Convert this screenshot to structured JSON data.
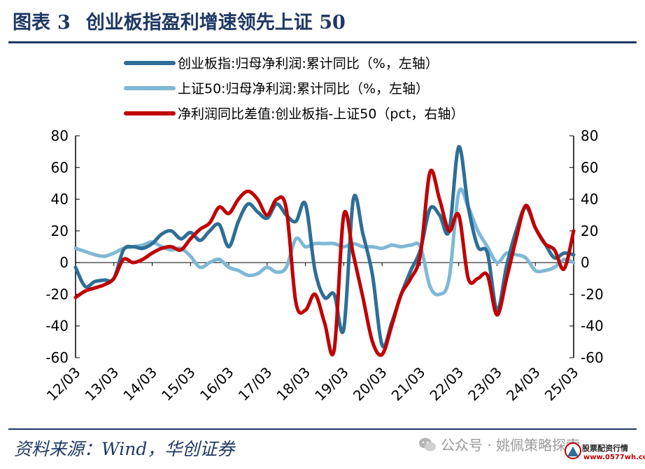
{
  "title": {
    "prefix": "图表",
    "number": "3",
    "text": "创业板指盈利增速领先上证 50"
  },
  "source": "资料来源：Wind，华创证券",
  "watermark": {
    "text": "公众号 · 姚佩策略探索",
    "icon": "wechat-icon"
  },
  "stamp": {
    "line1": "股票配资行情",
    "line2": "www.0577wh.com"
  },
  "chart_data": {
    "type": "line",
    "x_labels": [
      "12/03",
      "13/03",
      "14/03",
      "15/03",
      "16/03",
      "17/03",
      "18/03",
      "19/03",
      "20/03",
      "21/03",
      "22/03",
      "23/03",
      "24/03",
      "25/03"
    ],
    "x_range": [
      "2012-03",
      "2025-03"
    ],
    "ylim_left": [
      -60,
      80
    ],
    "ylim_right": [
      -60,
      80
    ],
    "y_ticks": [
      "80",
      "60",
      "40",
      "20",
      "0",
      "-20",
      "-40",
      "-60"
    ],
    "grid": false,
    "legend_position": "top",
    "series": [
      {
        "name": "创业板指:归母净利润:累计同比（%，左轴）",
        "axis": "left",
        "color": "#2e6e96",
        "points": [
          [
            "2012-03",
            -3
          ],
          [
            "2012-06",
            -15
          ],
          [
            "2012-09",
            -12
          ],
          [
            "2012-12",
            -11
          ],
          [
            "2013-03",
            -10
          ],
          [
            "2013-06",
            8
          ],
          [
            "2013-09",
            10
          ],
          [
            "2013-12",
            9
          ],
          [
            "2014-03",
            12
          ],
          [
            "2014-06",
            18
          ],
          [
            "2014-09",
            20
          ],
          [
            "2014-12",
            15
          ],
          [
            "2015-03",
            19
          ],
          [
            "2015-06",
            14
          ],
          [
            "2015-09",
            20
          ],
          [
            "2015-12",
            24
          ],
          [
            "2016-03",
            10
          ],
          [
            "2016-06",
            26
          ],
          [
            "2016-09",
            37
          ],
          [
            "2016-12",
            32
          ],
          [
            "2017-03",
            28
          ],
          [
            "2017-06",
            37
          ],
          [
            "2017-09",
            30
          ],
          [
            "2017-12",
            26
          ],
          [
            "2018-03",
            37
          ],
          [
            "2018-06",
            -5
          ],
          [
            "2018-09",
            -22
          ],
          [
            "2018-12",
            -20
          ],
          [
            "2019-03",
            -42
          ],
          [
            "2019-06",
            40
          ],
          [
            "2019-09",
            18
          ],
          [
            "2019-12",
            -8
          ],
          [
            "2020-03",
            -52
          ],
          [
            "2020-06",
            -38
          ],
          [
            "2020-09",
            -20
          ],
          [
            "2020-12",
            -5
          ],
          [
            "2021-03",
            8
          ],
          [
            "2021-06",
            34
          ],
          [
            "2021-09",
            30
          ],
          [
            "2021-12",
            20
          ],
          [
            "2022-03",
            73
          ],
          [
            "2022-06",
            35
          ],
          [
            "2022-09",
            10
          ],
          [
            "2022-12",
            6
          ],
          [
            "2023-03",
            -30
          ],
          [
            "2023-06",
            -2
          ],
          [
            "2023-09",
            20
          ],
          [
            "2023-12",
            35
          ],
          [
            "2024-03",
            22
          ],
          [
            "2024-06",
            12
          ],
          [
            "2024-09",
            3
          ],
          [
            "2024-12",
            6
          ],
          [
            "2025-03",
            5
          ]
        ]
      },
      {
        "name": "上证50:归母净利润:累计同比（%，左轴）",
        "axis": "left",
        "color": "#7fb8d6",
        "points": [
          [
            "2012-03",
            9
          ],
          [
            "2012-06",
            7
          ],
          [
            "2012-09",
            5
          ],
          [
            "2012-12",
            4
          ],
          [
            "2013-03",
            6
          ],
          [
            "2013-06",
            9
          ],
          [
            "2013-09",
            10
          ],
          [
            "2013-12",
            11
          ],
          [
            "2014-03",
            13
          ],
          [
            "2014-06",
            10
          ],
          [
            "2014-09",
            8
          ],
          [
            "2014-12",
            9
          ],
          [
            "2015-03",
            4
          ],
          [
            "2015-06",
            -3
          ],
          [
            "2015-09",
            0
          ],
          [
            "2015-12",
            2
          ],
          [
            "2016-03",
            -3
          ],
          [
            "2016-06",
            -5
          ],
          [
            "2016-09",
            -8
          ],
          [
            "2016-12",
            -7
          ],
          [
            "2017-03",
            -3
          ],
          [
            "2017-06",
            -6
          ],
          [
            "2017-09",
            -3
          ],
          [
            "2017-12",
            15
          ],
          [
            "2018-03",
            10
          ],
          [
            "2018-06",
            12
          ],
          [
            "2018-09",
            12
          ],
          [
            "2018-12",
            12
          ],
          [
            "2019-03",
            10
          ],
          [
            "2019-06",
            12
          ],
          [
            "2019-09",
            10
          ],
          [
            "2019-12",
            10
          ],
          [
            "2020-03",
            9
          ],
          [
            "2020-06",
            11
          ],
          [
            "2020-09",
            10
          ],
          [
            "2020-12",
            11
          ],
          [
            "2021-03",
            10
          ],
          [
            "2021-06",
            -15
          ],
          [
            "2021-09",
            -20
          ],
          [
            "2021-12",
            -10
          ],
          [
            "2022-03",
            44
          ],
          [
            "2022-06",
            35
          ],
          [
            "2022-09",
            20
          ],
          [
            "2022-12",
            10
          ],
          [
            "2023-03",
            0
          ],
          [
            "2023-06",
            6
          ],
          [
            "2023-09",
            5
          ],
          [
            "2023-12",
            3
          ],
          [
            "2024-03",
            -5
          ],
          [
            "2024-06",
            -5
          ],
          [
            "2024-09",
            -3
          ],
          [
            "2024-12",
            2
          ],
          [
            "2025-03",
            0
          ]
        ]
      },
      {
        "name": "净利润同比差值:创业板指-上证50（pct，右轴）",
        "axis": "right",
        "color": "#c00000",
        "points": [
          [
            "2012-03",
            -22
          ],
          [
            "2012-06",
            -18
          ],
          [
            "2012-09",
            -16
          ],
          [
            "2012-12",
            -14
          ],
          [
            "2013-03",
            -10
          ],
          [
            "2013-06",
            2
          ],
          [
            "2013-09",
            0
          ],
          [
            "2013-12",
            2
          ],
          [
            "2014-03",
            6
          ],
          [
            "2014-06",
            9
          ],
          [
            "2014-09",
            10
          ],
          [
            "2014-12",
            8
          ],
          [
            "2015-03",
            15
          ],
          [
            "2015-06",
            21
          ],
          [
            "2015-09",
            25
          ],
          [
            "2015-12",
            35
          ],
          [
            "2016-03",
            31
          ],
          [
            "2016-06",
            40
          ],
          [
            "2016-09",
            45
          ],
          [
            "2016-12",
            40
          ],
          [
            "2017-03",
            30
          ],
          [
            "2017-06",
            40
          ],
          [
            "2017-09",
            34
          ],
          [
            "2017-12",
            -25
          ],
          [
            "2018-03",
            -30
          ],
          [
            "2018-06",
            -20
          ],
          [
            "2018-09",
            -38
          ],
          [
            "2018-12",
            -55
          ],
          [
            "2019-03",
            30
          ],
          [
            "2019-06",
            5
          ],
          [
            "2019-09",
            -22
          ],
          [
            "2019-12",
            -50
          ],
          [
            "2020-03",
            -58
          ],
          [
            "2020-06",
            -40
          ],
          [
            "2020-09",
            -20
          ],
          [
            "2020-12",
            -10
          ],
          [
            "2021-03",
            5
          ],
          [
            "2021-06",
            57
          ],
          [
            "2021-09",
            40
          ],
          [
            "2021-12",
            20
          ],
          [
            "2022-03",
            30
          ],
          [
            "2022-06",
            -10
          ],
          [
            "2022-09",
            -10
          ],
          [
            "2022-12",
            -8
          ],
          [
            "2023-03",
            -33
          ],
          [
            "2023-06",
            -10
          ],
          [
            "2023-09",
            15
          ],
          [
            "2023-12",
            36
          ],
          [
            "2024-03",
            22
          ],
          [
            "2024-06",
            12
          ],
          [
            "2024-09",
            8
          ],
          [
            "2024-12",
            -4
          ],
          [
            "2025-03",
            20
          ]
        ]
      }
    ]
  }
}
